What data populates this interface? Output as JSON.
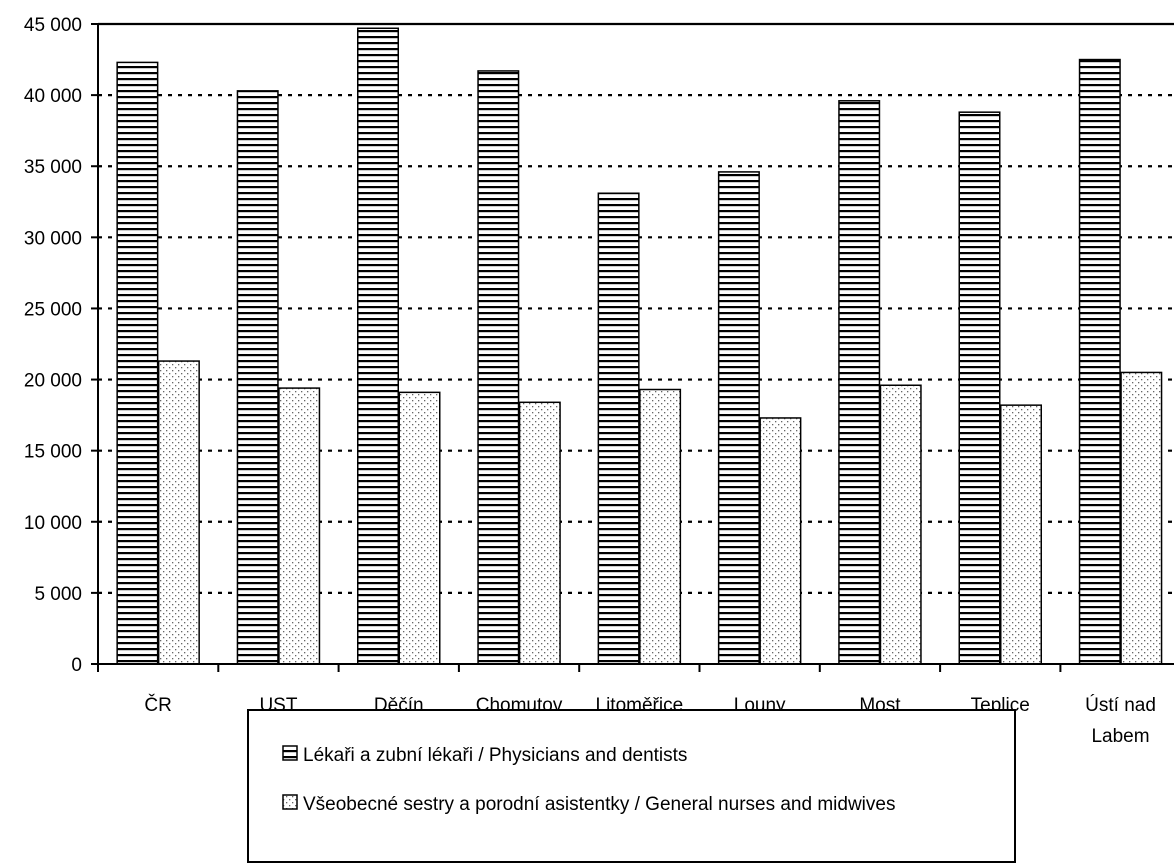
{
  "chart_data": {
    "type": "bar",
    "title": "",
    "xlabel": "",
    "ylabel": "",
    "categories": [
      [
        "ČR"
      ],
      [
        "UST"
      ],
      [
        "Děčín"
      ],
      [
        "Chomutov"
      ],
      [
        "Litoměřice"
      ],
      [
        "Louny"
      ],
      [
        "Most"
      ],
      [
        "Teplice"
      ],
      [
        "Ústí nad",
        "Labem"
      ]
    ],
    "series": [
      {
        "name": "Lékaři a zubní lékaři / Physicians and dentists",
        "pattern": "horizontal-stripes",
        "values": [
          42300,
          40300,
          44700,
          41700,
          33100,
          34600,
          39600,
          38800,
          42500
        ]
      },
      {
        "name": "Všeobecné sestry a porodní asistentky / General nurses and midwives",
        "pattern": "dots",
        "values": [
          21300,
          19400,
          19100,
          18400,
          19300,
          17300,
          19600,
          18200,
          20500
        ]
      }
    ],
    "ylim": [
      0,
      45000
    ],
    "yticks": [
      0,
      5000,
      10000,
      15000,
      20000,
      25000,
      30000,
      35000,
      40000,
      45000
    ],
    "ytick_labels": [
      "0",
      "5 000",
      "10 000",
      "15 000",
      "20 000",
      "25 000",
      "30 000",
      "35 000",
      "40 000",
      "45 000"
    ],
    "grid": "horizontal-dotted",
    "legend": "bottom-center"
  }
}
